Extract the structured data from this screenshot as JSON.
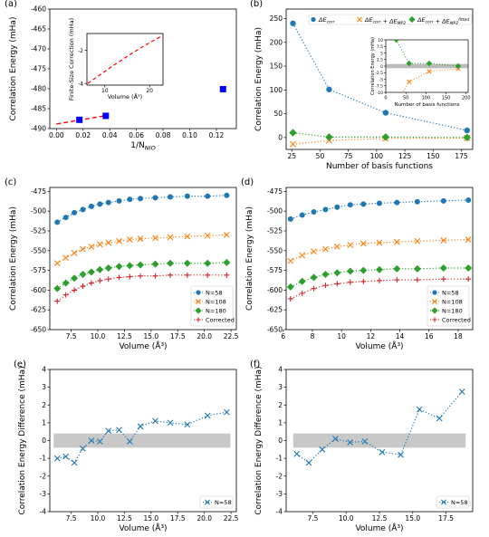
{
  "chart_data": [
    {
      "id": "a",
      "panel_label": "(a)",
      "type": "scatter",
      "xlabel": "1/N",
      "xlabel_sub": "NIO",
      "ylabel": "Correlation Energy (mHa)",
      "xlim": [
        -0.005,
        0.135
      ],
      "ylim": [
        -490,
        -460
      ],
      "xticks": [
        "0.00",
        "0.02",
        "0.04",
        "0.06",
        "0.08",
        "0.10",
        "0.12"
      ],
      "yticks": [
        "-460",
        "-465",
        "-470",
        "-475",
        "-480",
        "-485",
        "-490"
      ],
      "points": [
        {
          "x": 0.0172,
          "y": -487.8
        },
        {
          "x": 0.037,
          "y": -486.8
        },
        {
          "x": 0.125,
          "y": -480.1
        }
      ],
      "fit_line": {
        "x": [
          0.0,
          0.037
        ],
        "y": [
          -488.85,
          -486.75
        ]
      },
      "colors": {
        "points": "#0000ff",
        "fit": "#ff0000"
      },
      "inset": {
        "type": "line",
        "xlabel": "Volume (Å³)",
        "ylabel": "Finite-Size Correction (mHa)",
        "xlim": [
          6,
          23
        ],
        "ylim": [
          -4.1,
          -1.0
        ],
        "xticks": [
          "10",
          "20"
        ],
        "yticks": [
          "-2",
          "-4"
        ],
        "x": [
          6.2,
          8,
          10,
          12,
          14,
          16,
          18,
          20,
          22.4
        ],
        "y": [
          -4.0,
          -3.65,
          -3.28,
          -2.9,
          -2.55,
          -2.2,
          -1.87,
          -1.55,
          -1.2
        ]
      }
    },
    {
      "id": "b",
      "panel_label": "(b)",
      "type": "line",
      "xlabel": "Number of basis functions",
      "ylabel": "Correlation Energy (mHa)",
      "xlim": [
        20,
        185
      ],
      "ylim": [
        -25,
        270
      ],
      "xticks": [
        "25",
        "50",
        "75",
        "100",
        "125",
        "150",
        "175"
      ],
      "yticks": [
        "0",
        "50",
        "100",
        "150",
        "200",
        "250"
      ],
      "x": [
        26,
        58,
        108,
        180
      ],
      "series": [
        {
          "name": "ΔE_corr",
          "marker": "circle",
          "color": "#1f77b4",
          "values": [
            240,
            101,
            52,
            15
          ]
        },
        {
          "name": "ΔE_corr + ΔE_MP2",
          "marker": "x",
          "color": "#ff7f0e",
          "values": [
            -14,
            -6,
            -2,
            -1
          ]
        },
        {
          "name": "ΔE_corr + ΔE_MP2^fitted",
          "marker": "diamond",
          "color": "#2ca02c",
          "values": [
            10,
            1,
            1,
            0
          ]
        }
      ],
      "legend": [
        "ΔE",
        "corr",
        "ΔE",
        "corr",
        " + ΔE",
        "MP2",
        "ΔE",
        "corr",
        " + ΔE",
        "MP2",
        "fitted"
      ],
      "inset": {
        "xlabel": "Number of basis functions",
        "ylabel": "Correlation Energy (mHa)",
        "xlim": [
          0,
          205
        ],
        "ylim": [
          -10,
          10
        ],
        "xticks": [
          "0",
          "50",
          "100",
          "150",
          "200"
        ],
        "yticks": [
          "10",
          "7.5",
          "5",
          "2.5",
          "0",
          "-2.5",
          "-5",
          "-7.5",
          "-10"
        ]
      }
    },
    {
      "id": "c",
      "panel_label": "(c)",
      "type": "line",
      "xlabel": "Volume (Å³)",
      "ylabel": "Correlation Energy (mHa)",
      "xlim": [
        5.5,
        23
      ],
      "ylim": [
        -650,
        -470
      ],
      "xticks": [
        "7.5",
        "10.0",
        "12.5",
        "15.0",
        "17.5",
        "20.0",
        "22.5"
      ],
      "yticks": [
        "-475",
        "-500",
        "-525",
        "-550",
        "-575",
        "-600",
        "-625",
        "-650"
      ],
      "x": [
        6.2,
        7.0,
        7.8,
        8.6,
        9.4,
        10.2,
        11.0,
        12.0,
        13.0,
        14.0,
        15.4,
        16.8,
        18.4,
        20.3,
        22.1
      ],
      "series": [
        {
          "name": "N=58",
          "marker": "circle",
          "color": "#1f77b4",
          "values": [
            -514,
            -508,
            -502,
            -498,
            -494,
            -491,
            -489,
            -487,
            -485,
            -484,
            -483,
            -482,
            -481,
            -481,
            -480
          ]
        },
        {
          "name": "N=108",
          "marker": "x",
          "color": "#ff7f0e",
          "values": [
            -566,
            -559,
            -553,
            -548,
            -545,
            -542,
            -540,
            -538,
            -536,
            -535,
            -534,
            -533,
            -532,
            -531,
            -530
          ]
        },
        {
          "name": "N=180",
          "marker": "diamond",
          "color": "#2ca02c",
          "values": [
            -598,
            -591,
            -585,
            -580,
            -577,
            -574,
            -572,
            -570,
            -569,
            -568,
            -567,
            -566,
            -566,
            -566,
            -565
          ]
        },
        {
          "name": "Corrected",
          "marker": "plus",
          "color": "#d62728",
          "values": [
            -614,
            -606,
            -600,
            -595,
            -591,
            -588,
            -586,
            -584,
            -583,
            -582,
            -582,
            -581,
            -581,
            -581,
            -581
          ]
        }
      ]
    },
    {
      "id": "d",
      "panel_label": "(d)",
      "type": "line",
      "xlabel": "Volume (Å³)",
      "ylabel": "Correlation Energy (mHa)",
      "xlim": [
        6.2,
        19.0
      ],
      "ylim": [
        -650,
        -470
      ],
      "xticks": [
        "6",
        "8",
        "10",
        "12",
        "14",
        "16",
        "18"
      ],
      "yticks": [
        "-475",
        "-500",
        "-525",
        "-550",
        "-575",
        "-600",
        "-625",
        "-650"
      ],
      "x": [
        6.5,
        7.3,
        8.1,
        8.9,
        9.7,
        10.6,
        11.5,
        12.6,
        13.8,
        15.2,
        17.0,
        18.7
      ],
      "series": [
        {
          "name": "N=58",
          "marker": "circle",
          "color": "#1f77b4",
          "values": [
            -510,
            -505,
            -501,
            -498,
            -495,
            -492,
            -491,
            -490,
            -489,
            -488,
            -487,
            -486
          ]
        },
        {
          "name": "N=108",
          "marker": "x",
          "color": "#ff7f0e",
          "values": [
            -563,
            -556,
            -551,
            -548,
            -545,
            -543,
            -541,
            -540,
            -539,
            -538,
            -537,
            -536
          ]
        },
        {
          "name": "N=180",
          "marker": "diamond",
          "color": "#2ca02c",
          "values": [
            -596,
            -589,
            -584,
            -580,
            -578,
            -576,
            -575,
            -574,
            -573,
            -573,
            -572,
            -572
          ]
        },
        {
          "name": "Corrected",
          "marker": "plus",
          "color": "#d62728",
          "values": [
            -611,
            -604,
            -598,
            -594,
            -592,
            -590,
            -589,
            -588,
            -587,
            -587,
            -586,
            -586
          ]
        }
      ]
    },
    {
      "id": "e",
      "panel_label": "(e)",
      "type": "line",
      "xlabel": "Volume (Å³)",
      "ylabel": "Correlation Energy Difference (mHa)",
      "xlim": [
        5.5,
        23
      ],
      "ylim": [
        -4,
        4
      ],
      "xticks": [
        "7.5",
        "10.0",
        "12.5",
        "15.0",
        "17.5",
        "20.0",
        "22.5"
      ],
      "yticks": [
        "4",
        "3",
        "2",
        "1",
        "0",
        "-1",
        "-2",
        "-3",
        "-4"
      ],
      "band": [
        -0.4,
        0.4
      ],
      "x": [
        6.2,
        7.0,
        7.8,
        8.6,
        9.4,
        10.2,
        11.0,
        12.0,
        13.0,
        14.0,
        15.4,
        16.8,
        18.4,
        20.3,
        22.1
      ],
      "series": [
        {
          "name": "N=58",
          "marker": "x",
          "color": "#1f77b4",
          "values": [
            -1.0,
            -0.9,
            -1.25,
            -0.45,
            0.0,
            -0.05,
            0.55,
            0.6,
            -0.05,
            0.8,
            1.1,
            1.0,
            0.9,
            1.4,
            1.6
          ]
        }
      ]
    },
    {
      "id": "f",
      "panel_label": "(f)",
      "type": "line",
      "xlabel": "Volume (Å³)",
      "ylabel": "Correlation Energy Difference (mHa)",
      "xlim": [
        5.5,
        19.5
      ],
      "ylim": [
        -4,
        4
      ],
      "xticks": [
        "7.5",
        "10.0",
        "12.5",
        "15.0",
        "17.5"
      ],
      "yticks": [
        "4",
        "3",
        "2",
        "1",
        "0",
        "-1",
        "-2",
        "-3",
        "-4"
      ],
      "band": [
        -0.4,
        0.4
      ],
      "x": [
        6.3,
        7.2,
        8.2,
        9.2,
        10.3,
        11.4,
        12.7,
        14.1,
        15.5,
        17.0,
        18.7
      ],
      "series": [
        {
          "name": "N=58",
          "marker": "x",
          "color": "#1f77b4",
          "values": [
            -0.75,
            -1.25,
            -0.5,
            0.1,
            -0.1,
            -0.05,
            -0.65,
            -0.8,
            1.75,
            1.25,
            2.75
          ]
        }
      ]
    }
  ]
}
